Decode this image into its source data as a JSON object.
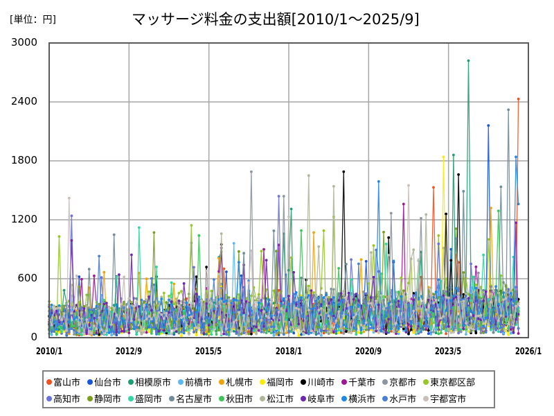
{
  "header": {
    "unit_label": "[単位：円]",
    "title": "マッサージ料金の支出額[2010/1～2025/9]"
  },
  "chart_data": {
    "type": "line",
    "title": "マッサージ料金の支出額[2010/1～2025/9]",
    "xlabel": "",
    "ylabel": "[単位：円]",
    "ylim": [
      0,
      3000
    ],
    "yticks": [
      0,
      600,
      1200,
      1800,
      2400,
      3000
    ],
    "xticks": [
      "2010/1",
      "2012/9",
      "2015/5",
      "2018/1",
      "2020/9",
      "2023/5",
      "2026/1"
    ],
    "x_range": [
      "2010/1",
      "2026/1"
    ],
    "grid": true,
    "legend_position": "bottom",
    "series": [
      {
        "name": "富山市",
        "color": "#F4511E",
        "base": 150,
        "peaks": [
          [
            "2022/11",
            1530
          ],
          [
            "2025/9",
            2430
          ]
        ]
      },
      {
        "name": "仙台市",
        "color": "#1A56DB",
        "base": 140,
        "peaks": [
          [
            "2024/9",
            2160
          ],
          [
            "2011/1",
            620
          ]
        ]
      },
      {
        "name": "相模原市",
        "color": "#1E9E73",
        "base": 180,
        "peaks": [
          [
            "2024/1",
            2820
          ],
          [
            "2023/7",
            1860
          ],
          [
            "2018/2",
            1310
          ]
        ]
      },
      {
        "name": "前橋市",
        "color": "#5BB8F5",
        "base": 110,
        "peaks": [
          [
            "2016/3",
            960
          ]
        ]
      },
      {
        "name": "札幌市",
        "color": "#F0A30A",
        "base": 160,
        "peaks": [
          [
            "2018/11",
            1070
          ],
          [
            "2024/10",
            1320
          ]
        ]
      },
      {
        "name": "福岡市",
        "color": "#FFEB00",
        "base": 100,
        "peaks": [
          [
            "2023/3",
            1840
          ]
        ]
      },
      {
        "name": "川崎市",
        "color": "#000000",
        "base": 180,
        "peaks": [
          [
            "2019/11",
            1690
          ],
          [
            "2023/9",
            1660
          ],
          [
            "2023/4",
            1260
          ]
        ]
      },
      {
        "name": "千葉市",
        "color": "#9C1898",
        "base": 170,
        "peaks": [
          [
            "2021/11",
            1360
          ],
          [
            "2025/8",
            1170
          ]
        ]
      },
      {
        "name": "京都市",
        "color": "#8C96A0",
        "base": 190,
        "peaks": [
          [
            "2016/10",
            1690
          ],
          [
            "2017/11",
            1440
          ]
        ]
      },
      {
        "name": "東京都区部",
        "color": "#95C728",
        "base": 240,
        "peaks": [
          [
            "2019/3",
            1090
          ],
          [
            "2024/9",
            1000
          ]
        ]
      },
      {
        "name": "高知市",
        "color": "#6A72DB",
        "base": 190,
        "peaks": [
          [
            "2010/10",
            1240
          ],
          [
            "2017/9",
            1440
          ]
        ]
      },
      {
        "name": "静岡市",
        "color": "#7A9E1E",
        "base": 190,
        "peaks": [
          [
            "2013/7",
            1070
          ]
        ]
      },
      {
        "name": "盛岡市",
        "color": "#2ED8A0",
        "base": 150,
        "peaks": [
          [
            "2013/1",
            1120
          ]
        ]
      },
      {
        "name": "名古屋市",
        "color": "#6F8C98",
        "base": 210,
        "peaks": [
          [
            "2025/5",
            2320
          ],
          [
            "2023/11",
            1490
          ]
        ]
      },
      {
        "name": "秋田市",
        "color": "#3DC45A",
        "base": 170,
        "peaks": [
          [
            "2015/1",
            1040
          ]
        ]
      },
      {
        "name": "松江市",
        "color": "#B0B89A",
        "base": 200,
        "peaks": [
          [
            "2018/9",
            1650
          ],
          [
            "2019/7",
            1540
          ]
        ]
      },
      {
        "name": "岐阜市",
        "color": "#6B2AAE",
        "base": 190,
        "peaks": [
          [
            "2010/10",
            990
          ]
        ]
      },
      {
        "name": "横浜市",
        "color": "#1E88E5",
        "base": 200,
        "peaks": [
          [
            "2021/1",
            1590
          ],
          [
            "2025/8",
            1840
          ]
        ]
      },
      {
        "name": "水戸市",
        "color": "#4A80D4",
        "base": 160,
        "peaks": [
          [
            "2011/9",
            830
          ]
        ]
      },
      {
        "name": "宇都宮市",
        "color": "#C8BEBA",
        "base": 180,
        "peaks": [
          [
            "2010/9",
            1420
          ],
          [
            "2018/1",
            1230
          ],
          [
            "2022/1",
            1550
          ]
        ]
      }
    ]
  },
  "axes": {
    "y_labels": [
      "3000",
      "2400",
      "1800",
      "1200",
      "600",
      "0"
    ],
    "x_labels": [
      "2010/1",
      "2012/9",
      "2015/5",
      "2018/1",
      "2020/9",
      "2023/5",
      "2026/1"
    ]
  },
  "legend": {
    "rows": [
      [
        {
          "label": "富山市",
          "color": "#F4511E"
        },
        {
          "label": "仙台市",
          "color": "#1A56DB"
        },
        {
          "label": "相模原市",
          "color": "#1E9E73"
        },
        {
          "label": "前橋市",
          "color": "#5BB8F5"
        },
        {
          "label": "札幌市",
          "color": "#F0A30A"
        },
        {
          "label": "福岡市",
          "color": "#FFEB00"
        },
        {
          "label": "川崎市",
          "color": "#000000"
        },
        {
          "label": "千葉市",
          "color": "#9C1898"
        },
        {
          "label": "京都市",
          "color": "#8C96A0"
        },
        {
          "label": "東京都区部",
          "color": "#95C728"
        }
      ],
      [
        {
          "label": "高知市",
          "color": "#6A72DB"
        },
        {
          "label": "静岡市",
          "color": "#7A9E1E"
        },
        {
          "label": "盛岡市",
          "color": "#2ED8A0"
        },
        {
          "label": "名古屋市",
          "color": "#6F8C98"
        },
        {
          "label": "秋田市",
          "color": "#3DC45A"
        },
        {
          "label": "松江市",
          "color": "#B0B89A"
        },
        {
          "label": "岐阜市",
          "color": "#6B2AAE"
        },
        {
          "label": "横浜市",
          "color": "#1E88E5"
        },
        {
          "label": "水戸市",
          "color": "#4A80D4"
        },
        {
          "label": "宇都宮市",
          "color": "#C8BEBA"
        }
      ]
    ]
  }
}
